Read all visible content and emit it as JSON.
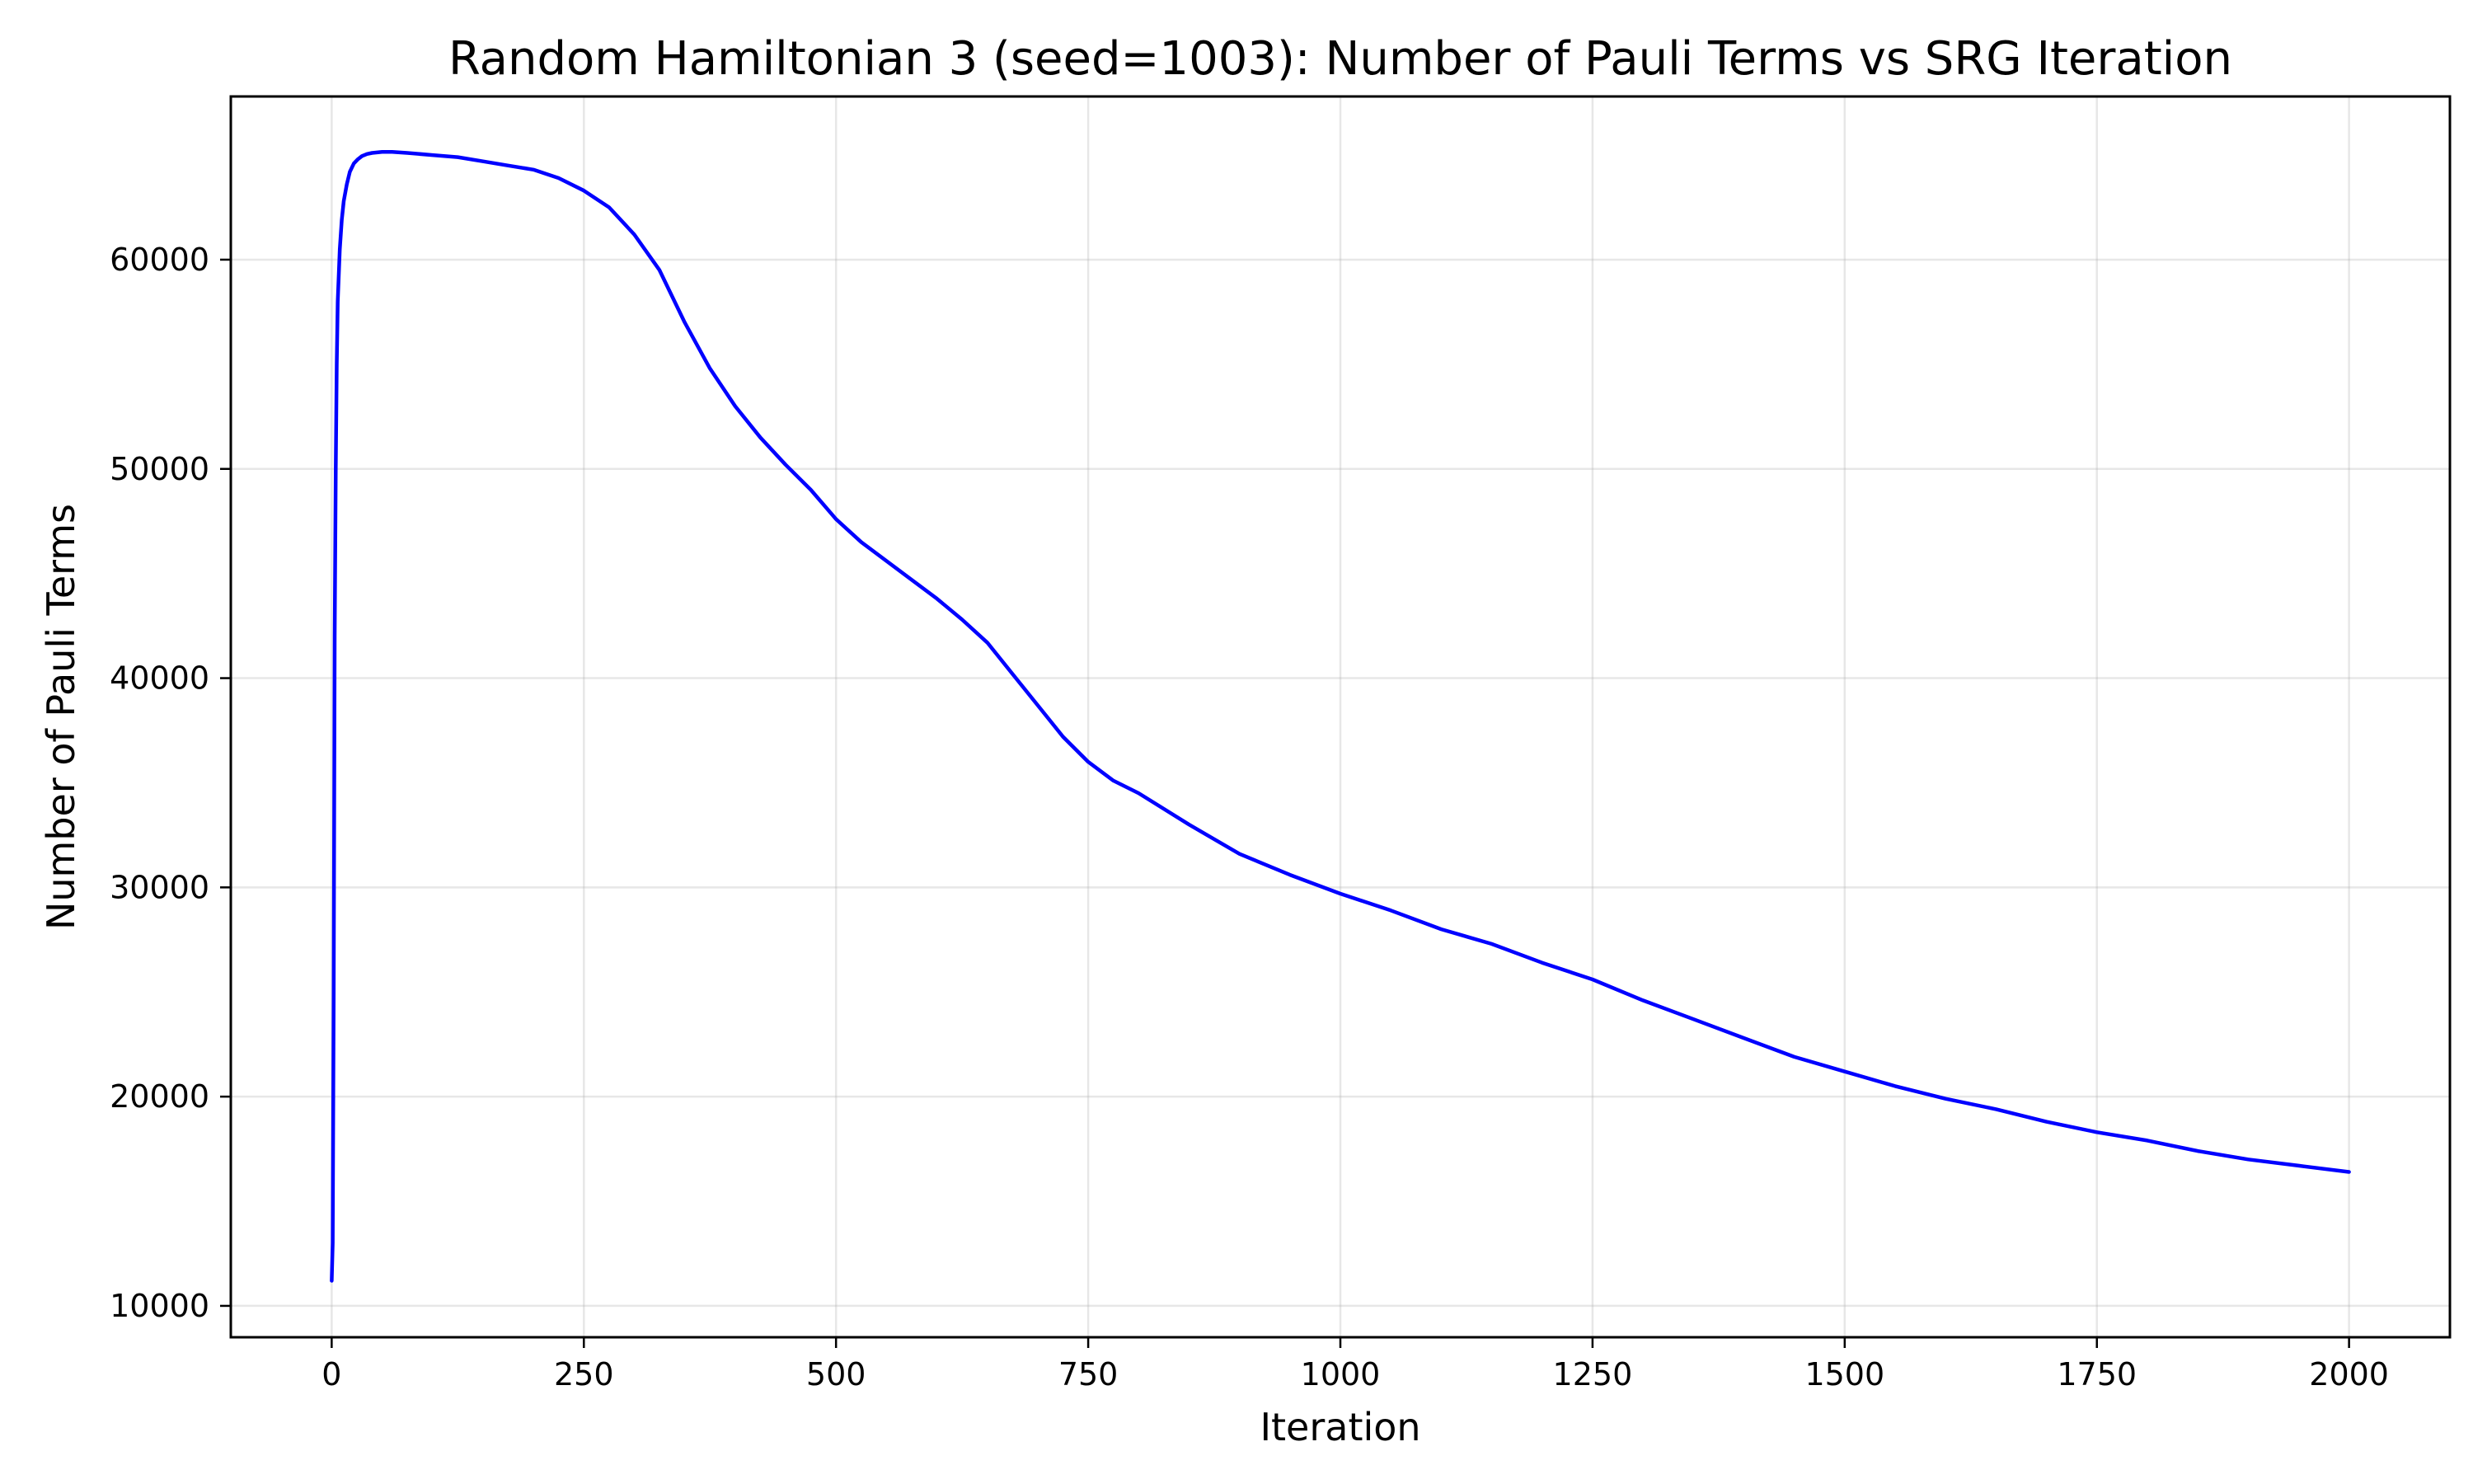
{
  "chart_data": {
    "type": "line",
    "title": "Random Hamiltonian 3 (seed=1003): Number of Pauli Terms vs SRG Iteration",
    "xlabel": "Iteration",
    "ylabel": "Number of Pauli Terms",
    "xlim": [
      -100,
      2100
    ],
    "ylim": [
      8500,
      67800
    ],
    "x_ticks": [
      0,
      250,
      500,
      750,
      1000,
      1250,
      1500,
      1750,
      2000
    ],
    "y_ticks": [
      10000,
      20000,
      30000,
      40000,
      50000,
      60000
    ],
    "grid": true,
    "legend": "none",
    "series": [
      {
        "color": "#0000ff",
        "x": [
          0,
          1,
          2,
          3,
          4,
          5,
          6,
          8,
          10,
          12,
          15,
          18,
          22,
          26,
          30,
          35,
          40,
          50,
          60,
          75,
          100,
          125,
          150,
          175,
          200,
          225,
          250,
          275,
          300,
          325,
          350,
          375,
          400,
          425,
          450,
          475,
          500,
          525,
          550,
          575,
          600,
          625,
          650,
          675,
          700,
          725,
          750,
          775,
          800,
          850,
          900,
          950,
          1000,
          1050,
          1100,
          1150,
          1200,
          1250,
          1300,
          1350,
          1400,
          1450,
          1500,
          1550,
          1600,
          1650,
          1700,
          1750,
          1800,
          1850,
          1900,
          1950,
          2000
        ],
        "y": [
          11200,
          13000,
          25000,
          42000,
          50000,
          55000,
          58000,
          60500,
          61900,
          62800,
          63600,
          64200,
          64600,
          64800,
          64950,
          65050,
          65100,
          65150,
          65150,
          65100,
          65000,
          64900,
          64700,
          64500,
          64300,
          63900,
          63300,
          62500,
          61200,
          59500,
          57000,
          54800,
          53000,
          51500,
          50200,
          49000,
          47600,
          46500,
          45600,
          44700,
          43800,
          42800,
          41700,
          40200,
          38700,
          37200,
          36000,
          35100,
          34500,
          33000,
          31600,
          30600,
          29700,
          28900,
          28000,
          27300,
          26400,
          25600,
          24600,
          23700,
          22800,
          21900,
          21200,
          20500,
          19900,
          19400,
          18800,
          18300,
          17900,
          17400,
          17000,
          16700,
          16400
        ]
      }
    ]
  }
}
